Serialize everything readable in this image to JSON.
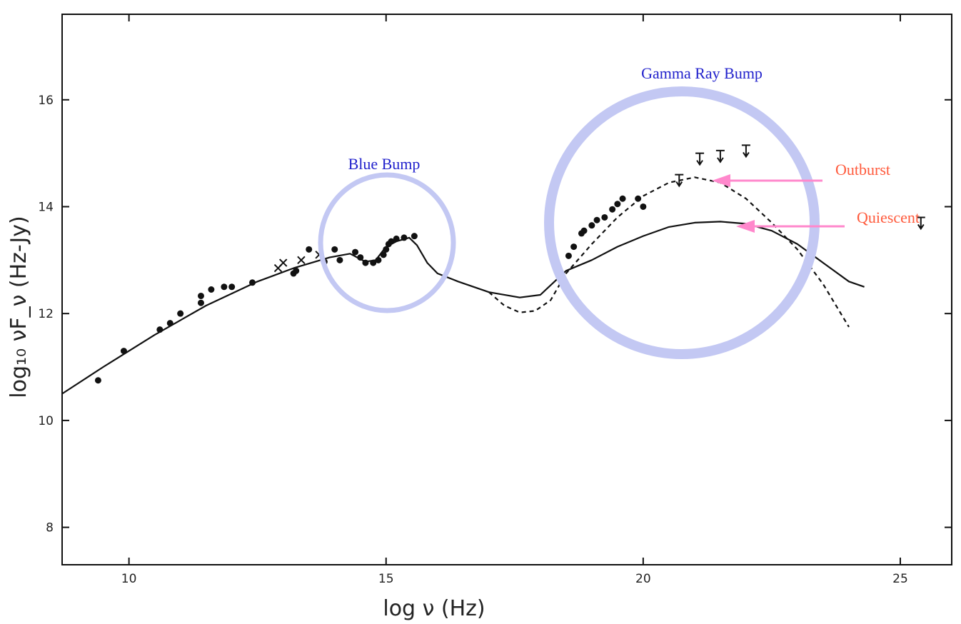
{
  "chart_data": {
    "type": "scatter",
    "xlabel": "log ν (Hz)",
    "ylabel": "log₁₀ νF_ν (Hz-Jy)",
    "xlim": [
      8.7,
      26.0
    ],
    "ylim": [
      7.3,
      17.6
    ],
    "xticks": [
      10,
      15,
      20,
      25
    ],
    "yticks": [
      8,
      10,
      12,
      14,
      16
    ],
    "grid": false,
    "series": [
      {
        "style": "points",
        "points": [
          [
            9.4,
            10.75
          ],
          [
            9.9,
            11.3
          ],
          [
            10.6,
            11.7
          ],
          [
            10.8,
            11.82
          ],
          [
            11.0,
            12.0
          ],
          [
            11.4,
            12.2
          ],
          [
            11.4,
            12.33
          ],
          [
            11.6,
            12.45
          ],
          [
            11.85,
            12.5
          ],
          [
            12.0,
            12.5
          ],
          [
            12.4,
            12.58
          ],
          [
            13.2,
            12.75
          ],
          [
            13.25,
            12.8
          ],
          [
            13.5,
            13.2
          ],
          [
            13.8,
            12.97
          ],
          [
            14.0,
            13.2
          ],
          [
            14.1,
            13.0
          ],
          [
            14.4,
            13.15
          ],
          [
            14.5,
            13.05
          ],
          [
            14.6,
            12.95
          ],
          [
            14.75,
            12.95
          ],
          [
            14.85,
            13.0
          ],
          [
            14.95,
            13.1
          ],
          [
            15.0,
            13.2
          ],
          [
            15.05,
            13.3
          ],
          [
            15.1,
            13.35
          ],
          [
            15.2,
            13.4
          ],
          [
            15.35,
            13.42
          ],
          [
            15.55,
            13.45
          ],
          [
            18.55,
            13.08
          ],
          [
            18.65,
            13.25
          ],
          [
            18.8,
            13.5
          ],
          [
            18.85,
            13.55
          ],
          [
            19.0,
            13.65
          ],
          [
            19.1,
            13.75
          ],
          [
            19.25,
            13.8
          ],
          [
            19.4,
            13.95
          ],
          [
            19.5,
            14.05
          ],
          [
            19.6,
            14.15
          ],
          [
            19.9,
            14.15
          ],
          [
            20.0,
            14.0
          ]
        ]
      },
      {
        "style": "cross",
        "points": [
          [
            12.9,
            12.85
          ],
          [
            13.0,
            12.95
          ],
          [
            13.35,
            13.0
          ],
          [
            13.7,
            13.1
          ]
        ]
      },
      {
        "style": "upper-limit",
        "points": [
          [
            20.7,
            14.6
          ],
          [
            21.1,
            15.0
          ],
          [
            21.5,
            15.05
          ],
          [
            22.0,
            15.15
          ],
          [
            25.4,
            13.8
          ]
        ]
      },
      {
        "style": "line-solid",
        "points": [
          [
            8.7,
            10.5
          ],
          [
            9.5,
            11.0
          ],
          [
            10.5,
            11.6
          ],
          [
            11.5,
            12.15
          ],
          [
            12.5,
            12.6
          ],
          [
            13.2,
            12.85
          ],
          [
            13.9,
            13.05
          ],
          [
            14.3,
            13.12
          ],
          [
            14.6,
            12.97
          ],
          [
            14.8,
            13.0
          ],
          [
            15.0,
            13.25
          ],
          [
            15.2,
            13.35
          ],
          [
            15.45,
            13.42
          ],
          [
            15.6,
            13.28
          ],
          [
            15.8,
            12.95
          ],
          [
            16.0,
            12.75
          ],
          [
            16.4,
            12.6
          ],
          [
            17.0,
            12.4
          ],
          [
            17.6,
            12.3
          ],
          [
            18.0,
            12.35
          ],
          [
            18.5,
            12.8
          ],
          [
            19.0,
            13.0
          ],
          [
            19.5,
            13.25
          ],
          [
            20.0,
            13.45
          ],
          [
            20.5,
            13.62
          ],
          [
            21.0,
            13.7
          ],
          [
            21.5,
            13.72
          ],
          [
            22.0,
            13.68
          ],
          [
            22.5,
            13.55
          ],
          [
            23.0,
            13.3
          ],
          [
            23.5,
            12.95
          ],
          [
            24.0,
            12.6
          ],
          [
            24.3,
            12.5
          ]
        ]
      },
      {
        "style": "line-dashed",
        "points": [
          [
            17.0,
            12.4
          ],
          [
            17.3,
            12.15
          ],
          [
            17.6,
            12.02
          ],
          [
            17.9,
            12.05
          ],
          [
            18.2,
            12.25
          ],
          [
            18.5,
            12.75
          ],
          [
            19.0,
            13.3
          ],
          [
            19.5,
            13.8
          ],
          [
            20.0,
            14.2
          ],
          [
            20.5,
            14.45
          ],
          [
            21.0,
            14.55
          ],
          [
            21.5,
            14.45
          ],
          [
            22.0,
            14.15
          ],
          [
            22.5,
            13.7
          ],
          [
            23.0,
            13.2
          ],
          [
            23.5,
            12.55
          ],
          [
            24.0,
            11.75
          ]
        ]
      }
    ],
    "annotations": {
      "blue_bump": "Blue Bump",
      "gamma_ray_bump": "Gamma Ray Bump",
      "outburst": "Outburst",
      "quiescent": "Quiescent"
    },
    "colors": {
      "circle": "#c3c8f3",
      "blue_text": "#2222cc",
      "red_text": "#ff5a3c",
      "arrow": "#ff88cc",
      "ink": "#111111"
    }
  }
}
